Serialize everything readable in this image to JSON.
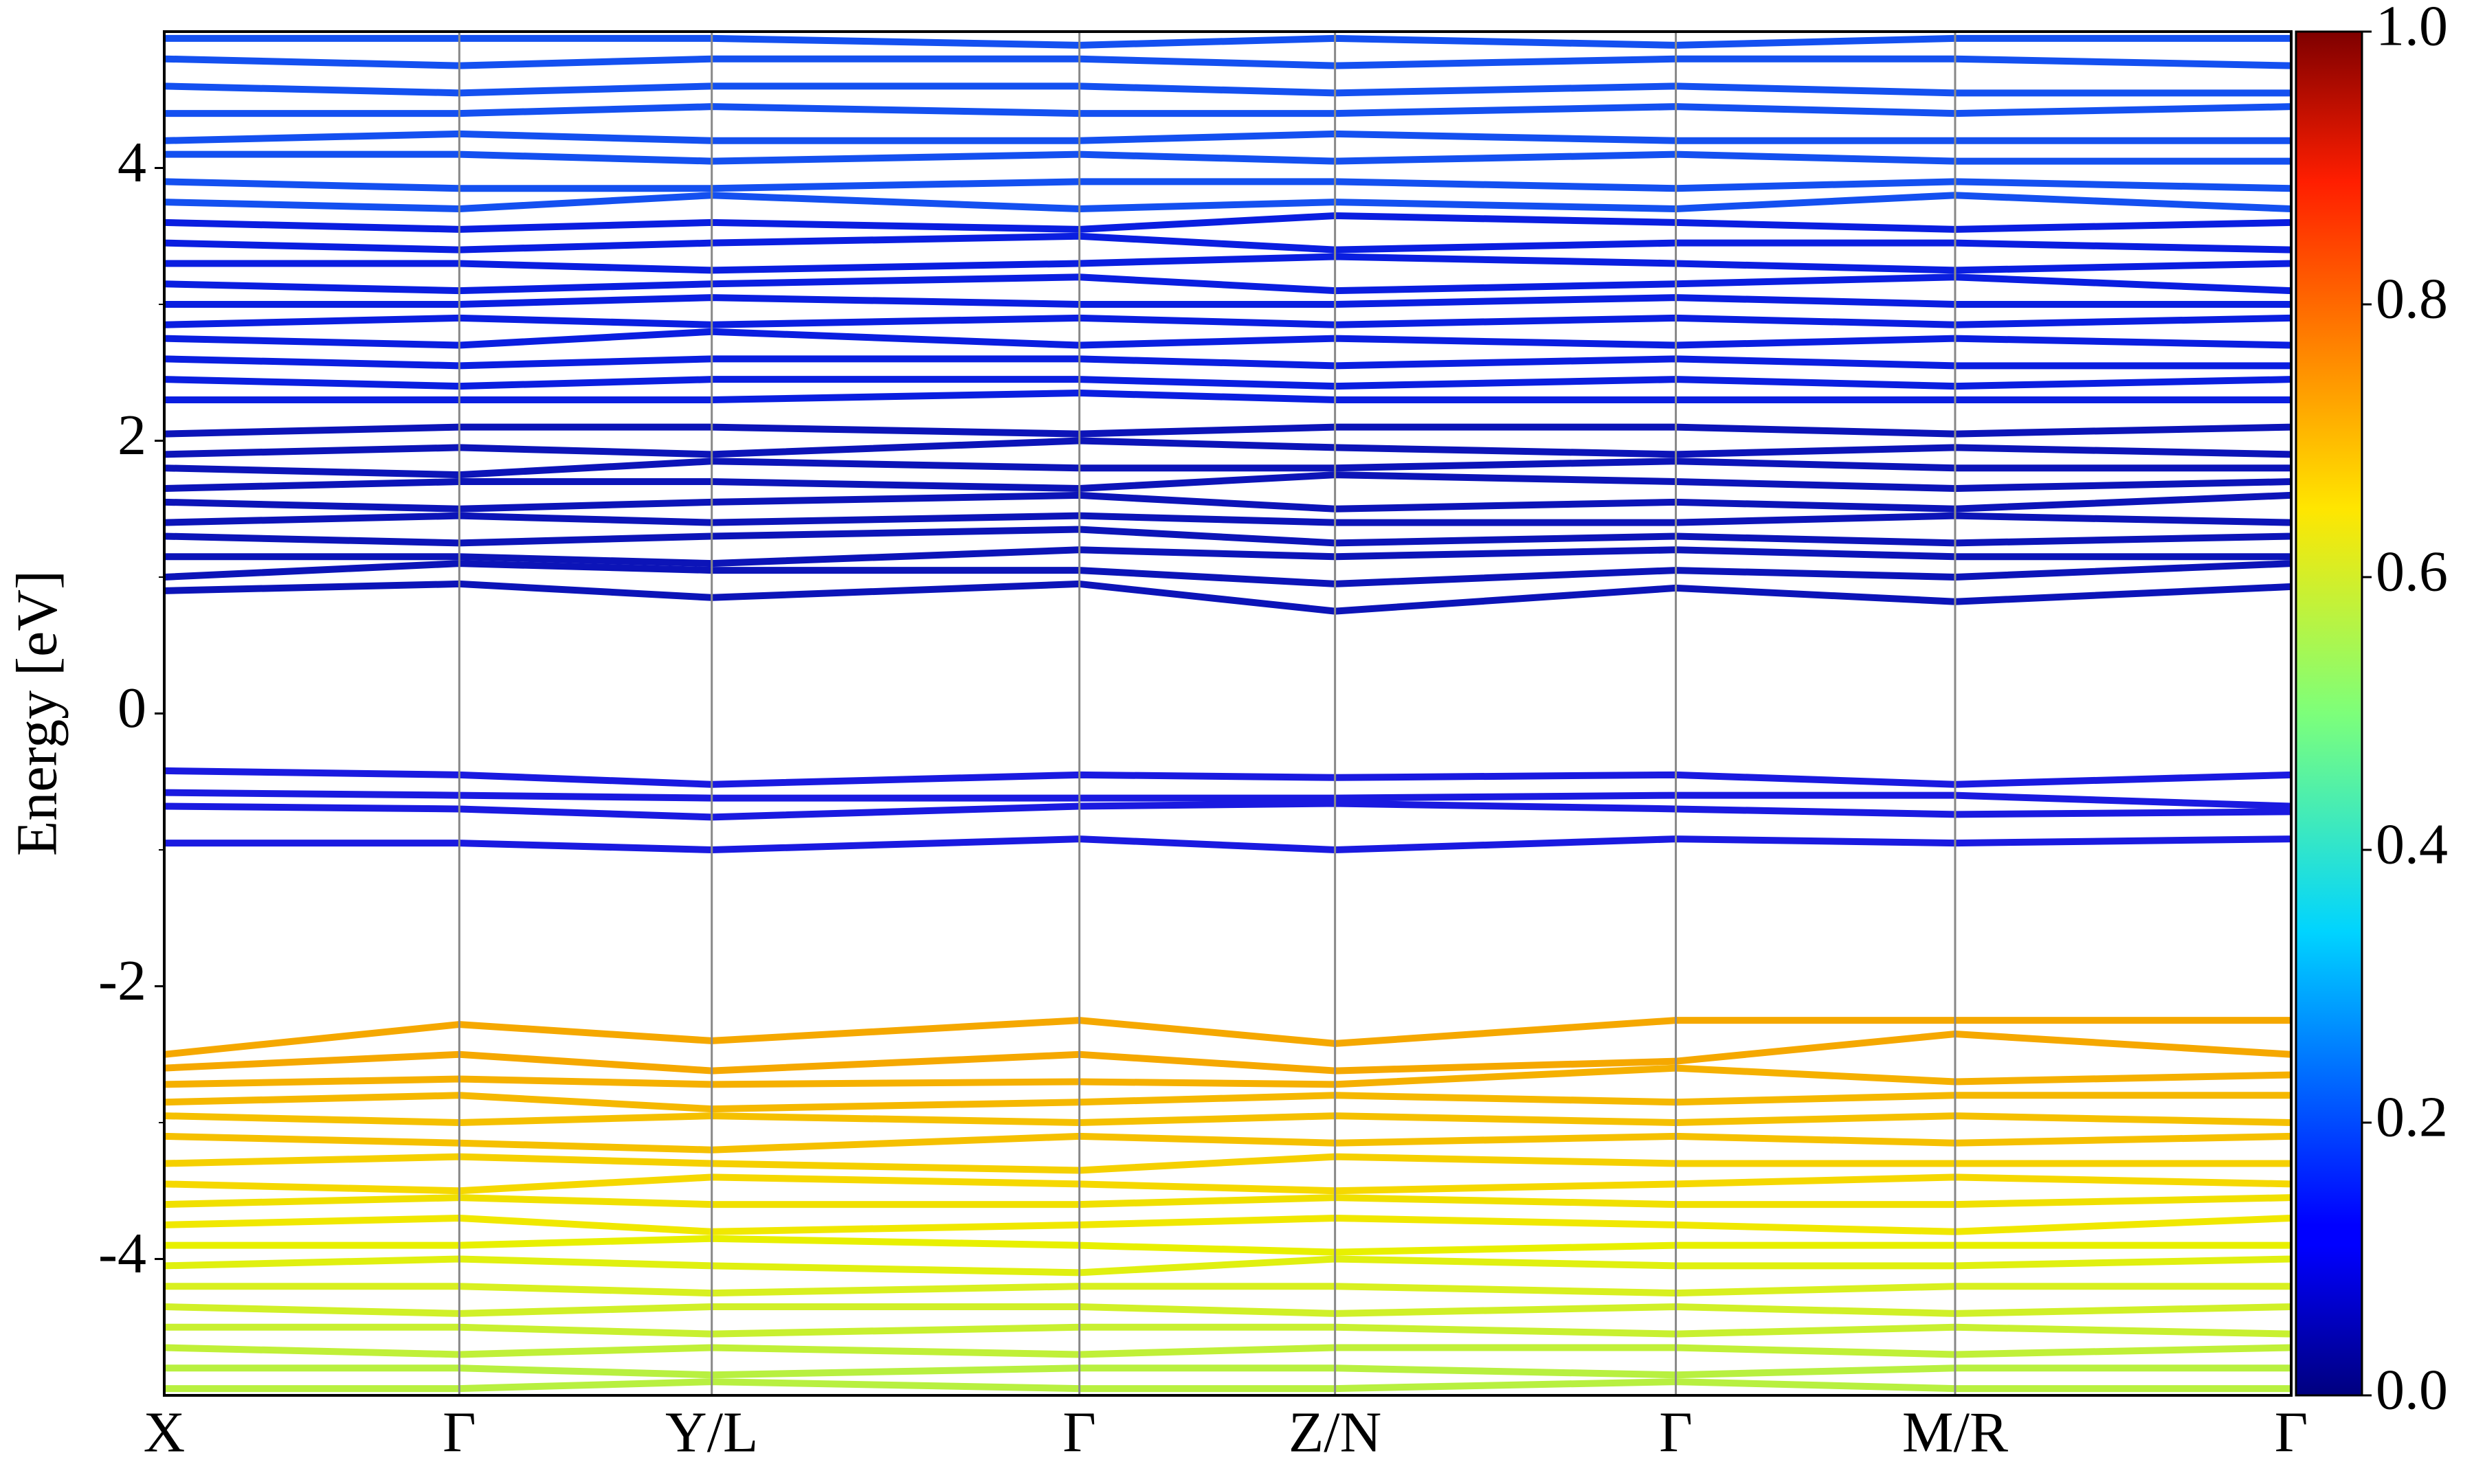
{
  "chart_data": {
    "type": "line",
    "ylabel": "Energy [eV]",
    "xlim": [
      0,
      13.48
    ],
    "xticks": [
      {
        "value": 0,
        "label": "X"
      },
      {
        "value": 1.87,
        "label": "Γ"
      },
      {
        "value": 3.47,
        "label": "Y/L"
      },
      {
        "value": 5.8,
        "label": "Γ"
      },
      {
        "value": 7.42,
        "label": "Z/N"
      },
      {
        "value": 9.58,
        "label": "Γ"
      },
      {
        "value": 11.35,
        "label": "M/R"
      },
      {
        "value": 13.48,
        "label": "Γ"
      }
    ],
    "ylim": [
      -5,
      5
    ],
    "yticks": [
      -4,
      -2,
      0,
      2,
      4
    ],
    "yminorticks": [
      -3,
      -1,
      1,
      3
    ],
    "x": [
      0,
      1.87,
      3.47,
      5.8,
      7.42,
      9.58,
      11.35,
      13.48
    ],
    "colorbar": {
      "lim": [
        0,
        1
      ],
      "ticks": [
        {
          "value": 0,
          "label": "0.0"
        },
        0.2,
        0.4,
        0.6,
        0.8,
        {
          "value": 1,
          "label": "1.0"
        }
      ]
    },
    "series": [
      {
        "color": "#1a1ae0",
        "values": [
          -0.42,
          -0.45,
          -0.52,
          -0.45,
          -0.47,
          -0.45,
          -0.52,
          -0.45
        ]
      },
      {
        "color": "#1a1ae0",
        "values": [
          -0.58,
          -0.6,
          -0.62,
          -0.62,
          -0.62,
          -0.6,
          -0.6,
          -0.68
        ]
      },
      {
        "color": "#1a1ae0",
        "values": [
          -0.68,
          -0.7,
          -0.76,
          -0.68,
          -0.66,
          -0.7,
          -0.74,
          -0.72
        ]
      },
      {
        "color": "#1a1ae0",
        "values": [
          -0.95,
          -0.95,
          -1.0,
          -0.92,
          -1.0,
          -0.92,
          -0.95,
          -0.92
        ]
      },
      {
        "color": "#0c14b8",
        "values": [
          0.9,
          0.95,
          0.85,
          0.95,
          0.75,
          0.92,
          0.82,
          0.93
        ]
      },
      {
        "color": "#0c14b8",
        "values": [
          1.0,
          1.1,
          1.05,
          1.05,
          0.95,
          1.05,
          1.0,
          1.1
        ]
      },
      {
        "color": "#0c14b8",
        "values": [
          1.15,
          1.15,
          1.1,
          1.2,
          1.15,
          1.2,
          1.15,
          1.15
        ]
      },
      {
        "color": "#0c14b8",
        "values": [
          1.3,
          1.25,
          1.3,
          1.35,
          1.25,
          1.3,
          1.25,
          1.3
        ]
      },
      {
        "color": "#0c14b8",
        "values": [
          1.4,
          1.45,
          1.4,
          1.45,
          1.4,
          1.4,
          1.45,
          1.4
        ]
      },
      {
        "color": "#0c14b8",
        "values": [
          1.55,
          1.5,
          1.55,
          1.6,
          1.5,
          1.55,
          1.5,
          1.6
        ]
      },
      {
        "color": "#0c14b8",
        "values": [
          1.65,
          1.7,
          1.7,
          1.65,
          1.75,
          1.7,
          1.65,
          1.7
        ]
      },
      {
        "color": "#0c14b8",
        "values": [
          1.8,
          1.75,
          1.85,
          1.8,
          1.8,
          1.85,
          1.8,
          1.8
        ]
      },
      {
        "color": "#0c14b8",
        "values": [
          1.9,
          1.95,
          1.9,
          2.0,
          1.95,
          1.9,
          1.95,
          1.9
        ]
      },
      {
        "color": "#0c14b8",
        "values": [
          2.05,
          2.1,
          2.1,
          2.05,
          2.1,
          2.1,
          2.05,
          2.1
        ]
      },
      {
        "color": "#0a1ee0",
        "values": [
          2.3,
          2.3,
          2.3,
          2.35,
          2.3,
          2.3,
          2.3,
          2.3
        ]
      },
      {
        "color": "#0a1ee0",
        "values": [
          2.45,
          2.4,
          2.45,
          2.45,
          2.4,
          2.45,
          2.4,
          2.45
        ]
      },
      {
        "color": "#0a1ee0",
        "values": [
          2.6,
          2.55,
          2.6,
          2.6,
          2.55,
          2.6,
          2.55,
          2.55
        ]
      },
      {
        "color": "#0a1ee0",
        "values": [
          2.75,
          2.7,
          2.8,
          2.7,
          2.75,
          2.7,
          2.75,
          2.7
        ]
      },
      {
        "color": "#0a1ee0",
        "values": [
          2.85,
          2.9,
          2.85,
          2.9,
          2.85,
          2.9,
          2.85,
          2.9
        ]
      },
      {
        "color": "#0a1ee0",
        "values": [
          3.0,
          3.0,
          3.05,
          3.0,
          3.0,
          3.05,
          3.0,
          3.0
        ]
      },
      {
        "color": "#0a1ee0",
        "values": [
          3.15,
          3.1,
          3.15,
          3.2,
          3.1,
          3.15,
          3.2,
          3.1
        ]
      },
      {
        "color": "#0a1ee0",
        "values": [
          3.3,
          3.3,
          3.25,
          3.3,
          3.35,
          3.3,
          3.25,
          3.3
        ]
      },
      {
        "color": "#0a1ee0",
        "values": [
          3.45,
          3.4,
          3.45,
          3.5,
          3.4,
          3.45,
          3.45,
          3.4
        ]
      },
      {
        "color": "#0a1ee0",
        "values": [
          3.6,
          3.55,
          3.6,
          3.55,
          3.65,
          3.6,
          3.55,
          3.6
        ]
      },
      {
        "color": "#1450f0",
        "values": [
          3.75,
          3.7,
          3.8,
          3.7,
          3.75,
          3.7,
          3.8,
          3.7
        ]
      },
      {
        "color": "#1450f0",
        "values": [
          3.9,
          3.85,
          3.85,
          3.9,
          3.9,
          3.85,
          3.9,
          3.85
        ]
      },
      {
        "color": "#1450f0",
        "values": [
          4.1,
          4.1,
          4.05,
          4.1,
          4.05,
          4.1,
          4.05,
          4.05
        ]
      },
      {
        "color": "#1450f0",
        "values": [
          4.2,
          4.25,
          4.2,
          4.2,
          4.25,
          4.2,
          4.2,
          4.2
        ]
      },
      {
        "color": "#1450f0",
        "values": [
          4.4,
          4.4,
          4.45,
          4.4,
          4.4,
          4.45,
          4.4,
          4.45
        ]
      },
      {
        "color": "#1450f0",
        "values": [
          4.6,
          4.55,
          4.6,
          4.6,
          4.55,
          4.6,
          4.55,
          4.55
        ]
      },
      {
        "color": "#1450f0",
        "values": [
          4.8,
          4.75,
          4.8,
          4.8,
          4.75,
          4.8,
          4.8,
          4.75
        ]
      },
      {
        "color": "#1450f0",
        "values": [
          4.95,
          4.95,
          4.95,
          4.9,
          4.95,
          4.9,
          4.95,
          4.95
        ]
      },
      {
        "color": "#f5a800",
        "values": [
          -2.5,
          -2.28,
          -2.4,
          -2.25,
          -2.42,
          -2.25,
          -2.25,
          -2.25
        ]
      },
      {
        "color": "#f5a800",
        "values": [
          -2.6,
          -2.5,
          -2.62,
          -2.5,
          -2.62,
          -2.55,
          -2.35,
          -2.5
        ]
      },
      {
        "color": "#f5b000",
        "values": [
          -2.72,
          -2.68,
          -2.72,
          -2.7,
          -2.72,
          -2.6,
          -2.7,
          -2.65
        ]
      },
      {
        "color": "#f5b800",
        "values": [
          -2.85,
          -2.8,
          -2.9,
          -2.85,
          -2.8,
          -2.85,
          -2.8,
          -2.8
        ]
      },
      {
        "color": "#f5c000",
        "values": [
          -2.95,
          -3.0,
          -2.95,
          -3.0,
          -2.95,
          -3.0,
          -2.95,
          -3.0
        ]
      },
      {
        "color": "#f5c000",
        "values": [
          -3.1,
          -3.15,
          -3.2,
          -3.1,
          -3.15,
          -3.1,
          -3.15,
          -3.1
        ]
      },
      {
        "color": "#f5d000",
        "values": [
          -3.3,
          -3.25,
          -3.3,
          -3.35,
          -3.25,
          -3.3,
          -3.3,
          -3.3
        ]
      },
      {
        "color": "#f5d800",
        "values": [
          -3.45,
          -3.5,
          -3.4,
          -3.45,
          -3.5,
          -3.45,
          -3.4,
          -3.45
        ]
      },
      {
        "color": "#f0e000",
        "values": [
          -3.6,
          -3.55,
          -3.6,
          -3.6,
          -3.55,
          -3.6,
          -3.6,
          -3.55
        ]
      },
      {
        "color": "#f0e800",
        "values": [
          -3.75,
          -3.7,
          -3.8,
          -3.75,
          -3.7,
          -3.75,
          -3.8,
          -3.7
        ]
      },
      {
        "color": "#e8f000",
        "values": [
          -3.9,
          -3.9,
          -3.85,
          -3.9,
          -3.95,
          -3.9,
          -3.9,
          -3.9
        ]
      },
      {
        "color": "#e0f010",
        "values": [
          -4.05,
          -4.0,
          -4.05,
          -4.1,
          -4.0,
          -4.05,
          -4.05,
          -4.0
        ]
      },
      {
        "color": "#d8f020",
        "values": [
          -4.2,
          -4.2,
          -4.25,
          -4.2,
          -4.2,
          -4.25,
          -4.2,
          -4.2
        ]
      },
      {
        "color": "#d0f028",
        "values": [
          -4.35,
          -4.4,
          -4.35,
          -4.35,
          -4.4,
          -4.35,
          -4.4,
          -4.35
        ]
      },
      {
        "color": "#c8f030",
        "values": [
          -4.5,
          -4.5,
          -4.55,
          -4.5,
          -4.5,
          -4.55,
          -4.5,
          -4.55
        ]
      },
      {
        "color": "#c0f038",
        "values": [
          -4.65,
          -4.7,
          -4.65,
          -4.7,
          -4.65,
          -4.65,
          -4.7,
          -4.65
        ]
      },
      {
        "color": "#b8f040",
        "values": [
          -4.8,
          -4.8,
          -4.85,
          -4.8,
          -4.8,
          -4.85,
          -4.8,
          -4.8
        ]
      },
      {
        "color": "#b8f040",
        "values": [
          -4.95,
          -4.95,
          -4.9,
          -4.95,
          -4.95,
          -4.9,
          -4.95,
          -4.95
        ]
      }
    ]
  }
}
